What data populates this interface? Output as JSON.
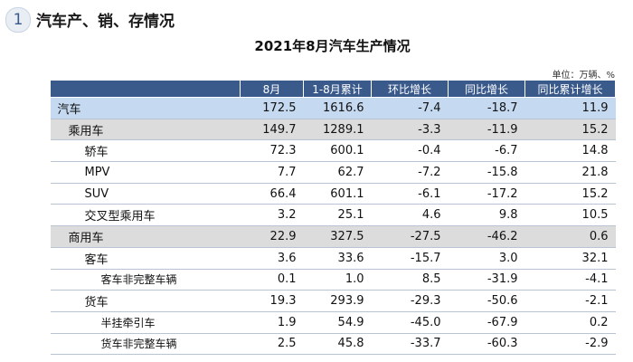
{
  "header": {
    "number": "1",
    "title": "汽车产、销、存情况"
  },
  "table": {
    "title": "2021年8月汽车生产情况",
    "unit": "单位：万辆、%",
    "columns": [
      "8月",
      "1-8月累计",
      "环比增长",
      "同比增长",
      "同比累计增长"
    ],
    "rows": [
      [
        "汽车",
        "172.5",
        "1616.6",
        "-7.4",
        "-18.7",
        "11.9"
      ],
      [
        "乘用车",
        "149.7",
        "1289.1",
        "-3.3",
        "-11.9",
        "15.2"
      ],
      [
        "轿车",
        "72.3",
        "600.1",
        "-0.4",
        "-6.7",
        "14.8"
      ],
      [
        "MPV",
        "7.7",
        "62.7",
        "-7.2",
        "-15.8",
        "21.8"
      ],
      [
        "SUV",
        "66.4",
        "601.1",
        "-6.1",
        "-17.2",
        "15.2"
      ],
      [
        "交叉型乘用车",
        "3.2",
        "25.1",
        "4.6",
        "9.8",
        "10.5"
      ],
      [
        "商用车",
        "22.9",
        "327.5",
        "-27.5",
        "-46.2",
        "0.6"
      ],
      [
        "客车",
        "3.6",
        "33.6",
        "-15.7",
        "3.0",
        "32.1"
      ],
      [
        "客车非完整车辆",
        "0.1",
        "1.0",
        "8.5",
        "-31.9",
        "-4.1"
      ],
      [
        "货车",
        "19.3",
        "293.9",
        "-29.3",
        "-50.6",
        "-2.1"
      ],
      [
        "半挂牵引车",
        "1.9",
        "54.9",
        "-45.0",
        "-67.9",
        "0.2"
      ],
      [
        "货车非完整车辆",
        "2.5",
        "45.8",
        "-33.7",
        "-60.3",
        "-2.9"
      ]
    ]
  }
}
